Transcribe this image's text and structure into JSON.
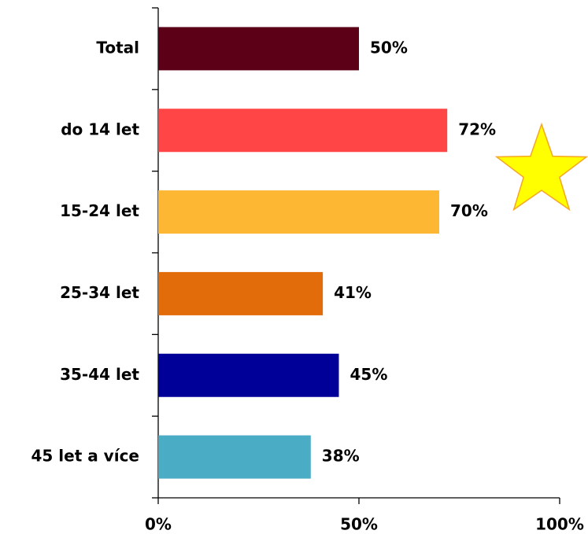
{
  "chart_data": {
    "type": "bar",
    "orientation": "horizontal",
    "categories": [
      "Total",
      "do 14 let",
      "15-24 let",
      "25-34 let",
      "35-44 let",
      "45 let a více"
    ],
    "values": [
      50,
      72,
      70,
      41,
      45,
      38
    ],
    "value_labels": [
      "50%",
      "72%",
      "70%",
      "41%",
      "45%",
      "38%"
    ],
    "colors": [
      "#5c0018",
      "#ff4545",
      "#fdb733",
      "#e36c0a",
      "#000099",
      "#4bacc6"
    ],
    "xlim": [
      0,
      100
    ],
    "xticks": [
      {
        "value": 0,
        "label": "0%"
      },
      {
        "value": 50,
        "label": "50%"
      },
      {
        "value": 100,
        "label": "100%"
      }
    ]
  }
}
